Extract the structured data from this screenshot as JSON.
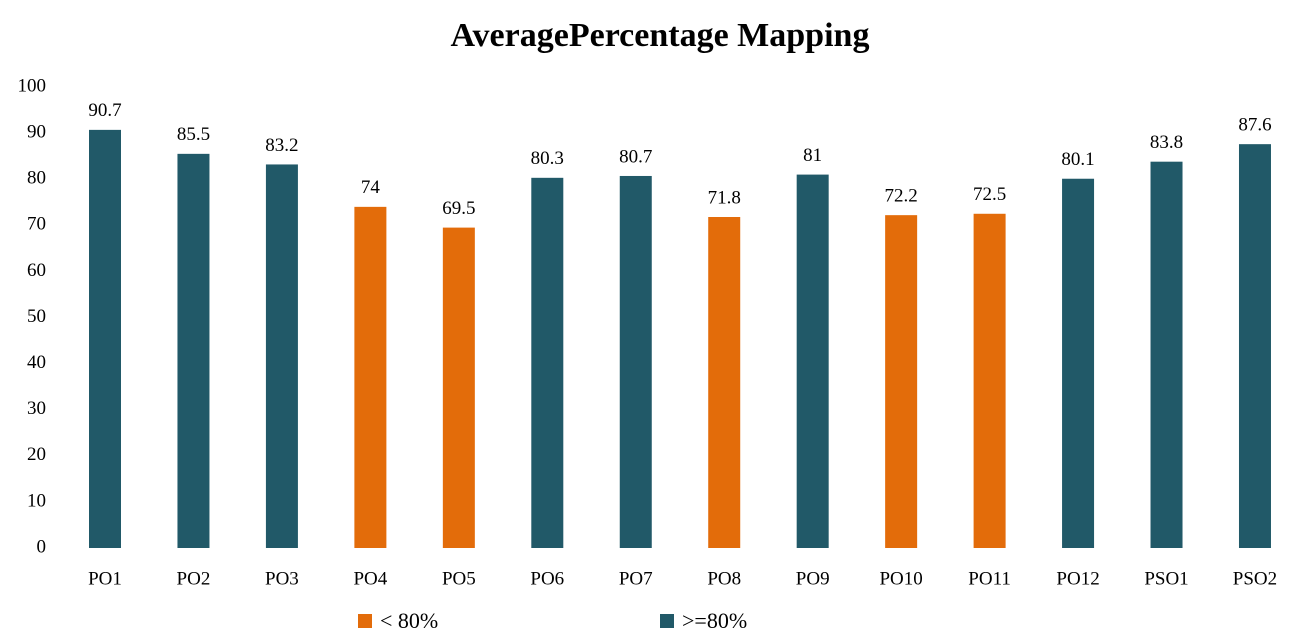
{
  "chart_data": {
    "type": "bar",
    "title": "AveragePercentage Mapping",
    "categories": [
      "PO1",
      "PO2",
      "PO3",
      "PO4",
      "PO5",
      "PO6",
      "PO7",
      "PO8",
      "PO9",
      "PO10",
      "PO11",
      "PO12",
      "PSO1",
      "PSO2"
    ],
    "series": [
      {
        "name": "< 80%",
        "color": "#e36c0a",
        "values": [
          null,
          null,
          null,
          74,
          69.5,
          null,
          null,
          71.8,
          null,
          72.2,
          72.5,
          null,
          null,
          null
        ]
      },
      {
        "name": ">=80%",
        "color": "#215968",
        "values": [
          90.7,
          85.5,
          83.2,
          null,
          null,
          80.3,
          80.7,
          null,
          81,
          null,
          null,
          80.1,
          83.8,
          87.6
        ]
      }
    ],
    "ylim": [
      0,
      100
    ],
    "yticks": [
      0,
      10,
      20,
      30,
      40,
      50,
      60,
      70,
      80,
      90,
      100
    ],
    "grid": false
  }
}
